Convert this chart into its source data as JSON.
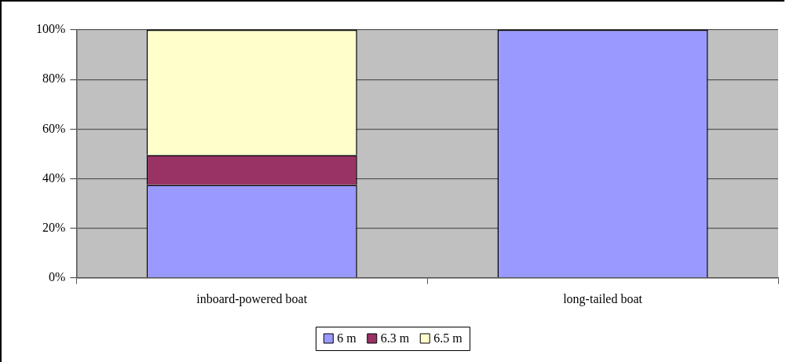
{
  "chart_data": {
    "type": "bar",
    "stacked": true,
    "categories": [
      "inboard-powered boat",
      "long-tailed boat"
    ],
    "series": [
      {
        "name": "6 m",
        "color": "#9999ff",
        "values": [
          37.5,
          100
        ]
      },
      {
        "name": "6.3 m",
        "color": "#993366",
        "values": [
          12,
          0
        ]
      },
      {
        "name": "6.5 m",
        "color": "#ffffcc",
        "values": [
          50.5,
          0
        ]
      }
    ],
    "ylim": [
      0,
      100
    ],
    "yticks": [
      {
        "value": 0,
        "label": "0%"
      },
      {
        "value": 20,
        "label": "20%"
      },
      {
        "value": 40,
        "label": "40%"
      },
      {
        "value": 60,
        "label": "60%"
      },
      {
        "value": 80,
        "label": "80%"
      },
      {
        "value": 100,
        "label": "100%"
      }
    ],
    "grid": "y",
    "legend": "bottom"
  }
}
